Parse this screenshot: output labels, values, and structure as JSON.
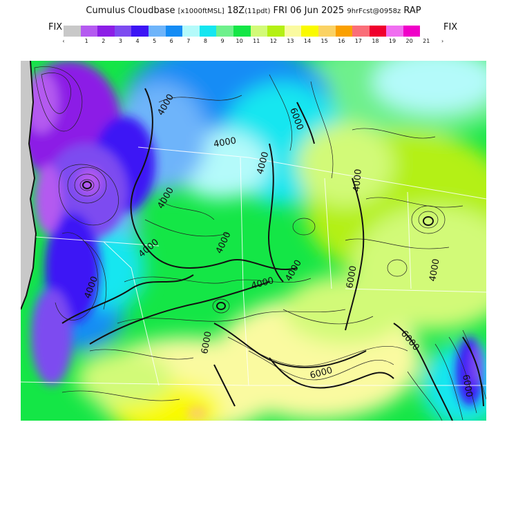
{
  "header": {
    "title_main": "Cumulus Cloudbase",
    "title_units": "[x1000ftMSL]",
    "title_time": "18Z",
    "title_local": "(11pdt)",
    "title_date": "FRI 06 Jun 2025",
    "title_fcst": "9hrFcst@0958z",
    "title_model": "RAP"
  },
  "legend": {
    "fix_left": "FIX",
    "fix_right": "FIX",
    "under_mark": "‹",
    "over_mark": "›",
    "colors": [
      "#c8c8c8",
      "#b45af0",
      "#8c1ee6",
      "#7d4bf0",
      "#3c14f5",
      "#6eb4fa",
      "#148cf5",
      "#b4fafa",
      "#14e6f0",
      "#6ef08c",
      "#14e646",
      "#d2fa78",
      "#b4f014",
      "#fafaa0",
      "#fafa00",
      "#fad264",
      "#faa000",
      "#fa6e78",
      "#f0002d",
      "#f06ef0",
      "#f000c8"
    ],
    "ticks": [
      "1",
      "2",
      "3",
      "4",
      "5",
      "6",
      "7",
      "8",
      "9",
      "10",
      "11",
      "12",
      "13",
      "14",
      "15",
      "16",
      "17",
      "18",
      "19",
      "20",
      "21"
    ]
  },
  "map": {
    "contour_labels": [
      "4000",
      "4000",
      "4000",
      "4000",
      "4000",
      "4000",
      "4000",
      "4000",
      "4000",
      "4000",
      "4000",
      "6000",
      "6000",
      "6000",
      "6000",
      "6000",
      "6000",
      "6000"
    ]
  }
}
